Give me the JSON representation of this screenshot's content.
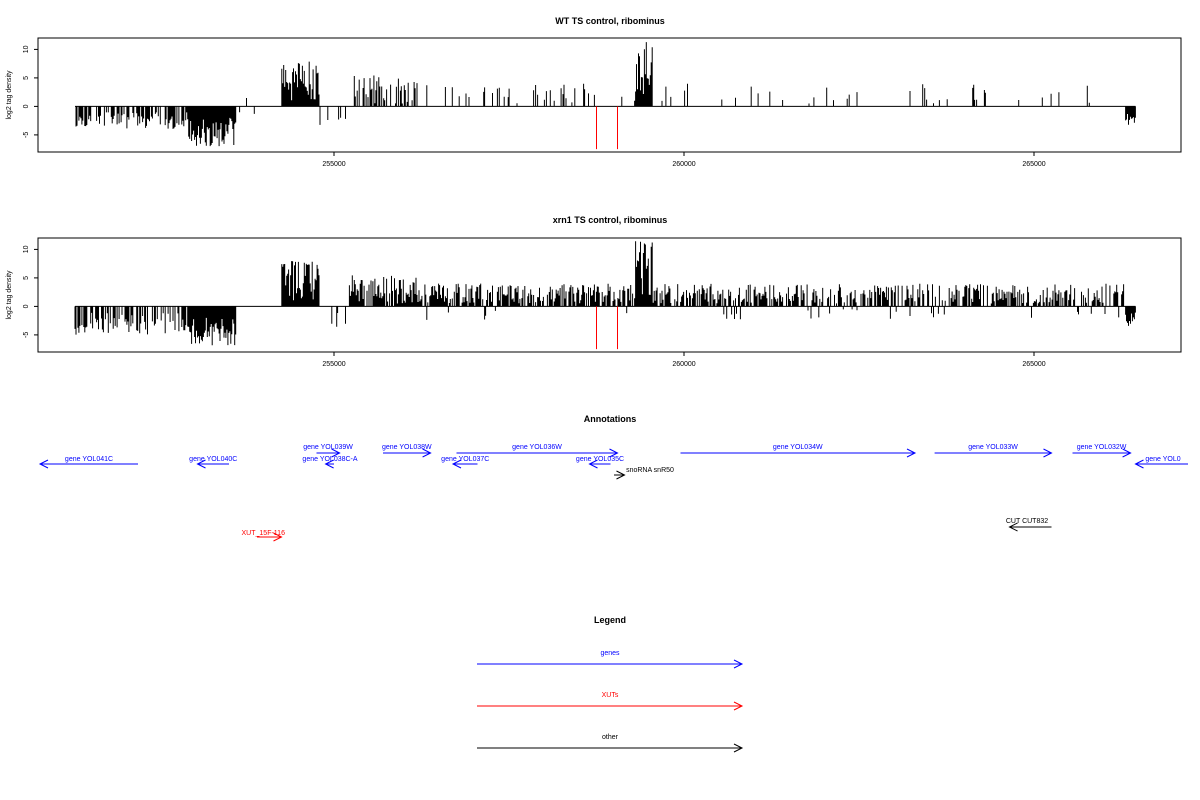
{
  "chart_data": {
    "type": "bar",
    "x_range": [
      251000,
      267000
    ],
    "x_ticks": [
      255000,
      260000,
      265000
    ],
    "x_tick_labels": [
      "255000",
      "260000",
      "265000"
    ],
    "y_ticks": [
      -5,
      0,
      5,
      10
    ],
    "y_tick_labels": [
      "-5",
      "0",
      "5",
      "10"
    ],
    "ylim": [
      -8,
      12
    ],
    "panels": [
      {
        "title": "WT TS control, ribominus",
        "ylabel": "log2 tag density",
        "density": "sparse",
        "red_marks": [
          {
            "x": 258750,
            "y": -7.5
          },
          {
            "x": 259050,
            "y": -7.5
          }
        ]
      },
      {
        "title": "xrn1 TS control, ribominus",
        "ylabel": "log2 tag density",
        "density": "dense",
        "red_marks": [
          {
            "x": 258750,
            "y": -7.5
          },
          {
            "x": 259050,
            "y": -7.5
          }
        ]
      }
    ],
    "annotations": {
      "title": "Annotations",
      "genes": [
        {
          "label": "gene YOL041C",
          "start": 252200,
          "end": 250800,
          "row": 2
        },
        {
          "label": "gene YOL040C",
          "start": 253500,
          "end": 253050,
          "row": 2
        },
        {
          "label": "gene YOL039W",
          "start": 254750,
          "end": 255080,
          "row": 0
        },
        {
          "label": "gene YOL038C-A",
          "start": 255000,
          "end": 254880,
          "row": 1
        },
        {
          "label": "gene YOL038W",
          "start": 255700,
          "end": 256380,
          "row": 0
        },
        {
          "label": "gene YOL037C",
          "start": 257050,
          "end": 256700,
          "row": 2
        },
        {
          "label": "gene YOL036W",
          "start": 256750,
          "end": 259050,
          "row": 0
        },
        {
          "label": "gene YOL035C",
          "start": 258950,
          "end": 258650,
          "row": 2
        },
        {
          "label": "gene YOL034W",
          "start": 259950,
          "end": 263300,
          "row": 0
        },
        {
          "label": "gene YOL033W",
          "start": 263580,
          "end": 265250,
          "row": 0
        },
        {
          "label": "gene YOL032W",
          "start": 265550,
          "end": 266380,
          "row": 0
        },
        {
          "label": "gene YOL0",
          "start": 267200,
          "end": 266450,
          "row": 2
        }
      ],
      "xuts": [
        {
          "label": "XUT_15F-116",
          "start": 253900,
          "end": 254250
        }
      ],
      "other": [
        {
          "label": "snoRNA snR50",
          "start": 259000,
          "end": 259150
        },
        {
          "label": "CUT CUT832",
          "start": 265250,
          "end": 264650
        }
      ]
    },
    "legend": {
      "title": "Legend",
      "items": [
        {
          "label": "genes",
          "color": "#0000ff"
        },
        {
          "label": "XUTs",
          "color": "#ff0000"
        },
        {
          "label": "other",
          "color": "#000000"
        }
      ]
    }
  }
}
